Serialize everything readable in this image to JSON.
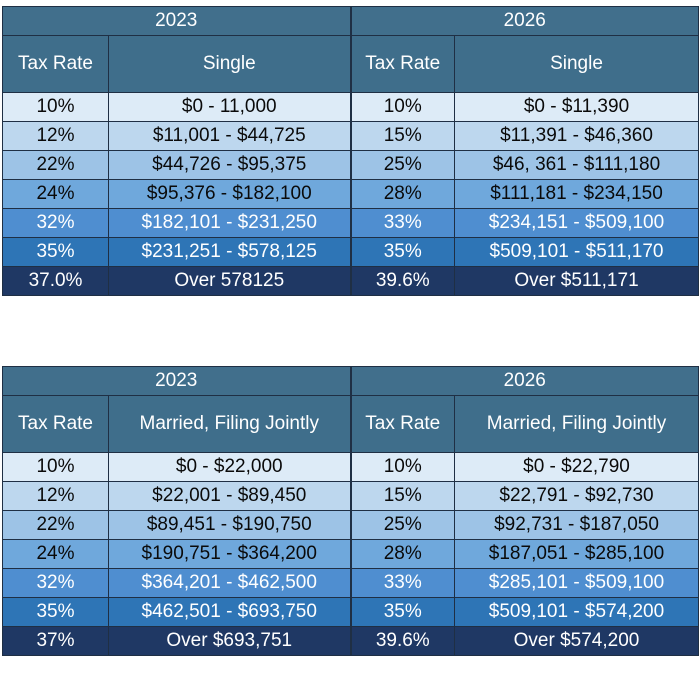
{
  "tables": [
    {
      "left_year": "2023",
      "right_year": "2026",
      "left_rate_header": "Tax Rate",
      "left_status_header": "Single",
      "right_rate_header": "Tax Rate",
      "right_status_header": "Single",
      "rows": [
        {
          "l_rate": "10%",
          "l_range": "$0 - 11,000",
          "r_rate": "10%",
          "r_range": "$0 - $11,390"
        },
        {
          "l_rate": "12%",
          "l_range": "$11,001 - $44,725",
          "r_rate": "15%",
          "r_range": "$11,391 - $46,360"
        },
        {
          "l_rate": "22%",
          "l_range": "$44,726 - $95,375",
          "r_rate": "25%",
          "r_range": "$46, 361 - $111,180"
        },
        {
          "l_rate": "24%",
          "l_range": "$95,376 - $182,100",
          "r_rate": "28%",
          "r_range": "$111,181 - $234,150"
        },
        {
          "l_rate": "32%",
          "l_range": "$182,101 - $231,250",
          "r_rate": "33%",
          "r_range": "$234,151 - $509,100"
        },
        {
          "l_rate": "35%",
          "l_range": "$231,251 - $578,125",
          "r_rate": "35%",
          "r_range": "$509,101 - $511,170"
        },
        {
          "l_rate": "37.0%",
          "l_range": "Over 578125",
          "r_rate": "39.6%",
          "r_range": "Over $511,171"
        }
      ]
    },
    {
      "left_year": "2023",
      "right_year": "2026",
      "left_rate_header": "Tax Rate",
      "left_status_header": "Married, Filing Jointly",
      "right_rate_header": "Tax Rate",
      "right_status_header": "Married, Filing Jointly",
      "rows": [
        {
          "l_rate": "10%",
          "l_range": "$0 - $22,000",
          "r_rate": "10%",
          "r_range": "$0 - $22,790"
        },
        {
          "l_rate": "12%",
          "l_range": "$22,001 - $89,450",
          "r_rate": "15%",
          "r_range": "$22,791 - $92,730"
        },
        {
          "l_rate": "22%",
          "l_range": "$89,451 - $190,750",
          "r_rate": "25%",
          "r_range": "$92,731 - $187,050"
        },
        {
          "l_rate": "24%",
          "l_range": "$190,751 - $364,200",
          "r_rate": "28%",
          "r_range": "$187,051 - $285,100"
        },
        {
          "l_rate": "32%",
          "l_range": "$364,201 - $462,500",
          "r_rate": "33%",
          "r_range": "$285,101 - $509,100"
        },
        {
          "l_rate": "35%",
          "l_range": "$462,501 - $693,750",
          "r_rate": "35%",
          "r_range": "$509,101 - $574,200"
        },
        {
          "l_rate": "37%",
          "l_range": "Over $693,751",
          "r_rate": "39.6%",
          "r_range": "Over $574,200"
        }
      ]
    }
  ]
}
